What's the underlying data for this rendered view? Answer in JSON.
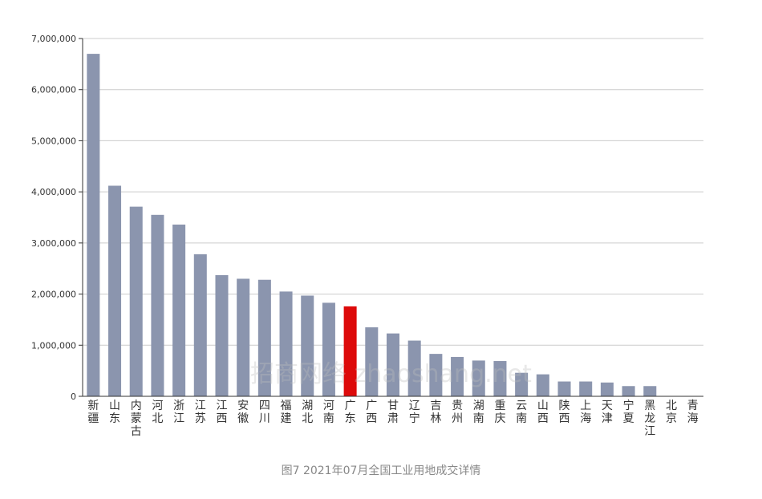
{
  "chart_data": {
    "type": "bar",
    "title": "",
    "xlabel": "",
    "ylabel": "",
    "ylim": [
      0,
      7000000
    ],
    "yticks": [
      "0",
      "1,000,000",
      "2,000,000",
      "3,000,000",
      "4,000,000",
      "5,000,000",
      "6,000,000",
      "7,000,000"
    ],
    "ytick_values": [
      0,
      1000000,
      2000000,
      3000000,
      4000000,
      5000000,
      6000000,
      7000000
    ],
    "grid": true,
    "categories": [
      "新疆",
      "山东",
      "内蒙古",
      "河北",
      "浙江",
      "江苏",
      "江西",
      "安徽",
      "四川",
      "福建",
      "湖北",
      "河南",
      "广东",
      "广西",
      "甘肃",
      "辽宁",
      "吉林",
      "贵州",
      "湖南",
      "重庆",
      "云南",
      "山西",
      "陕西",
      "上海",
      "天津",
      "宁夏",
      "黑龙江",
      "北京",
      "青海"
    ],
    "values": [
      6700000,
      4120000,
      3710000,
      3550000,
      3360000,
      2780000,
      2370000,
      2300000,
      2280000,
      2050000,
      1970000,
      1830000,
      1760000,
      1350000,
      1230000,
      1090000,
      830000,
      770000,
      700000,
      690000,
      460000,
      430000,
      290000,
      290000,
      270000,
      200000,
      200000,
      5000,
      3000
    ],
    "highlight_index": 12,
    "colors": {
      "bar": "#8b95ae",
      "highlight": "#dd0a0a",
      "grid": "#cccccc",
      "axis": "#333333"
    }
  },
  "watermark": "招商网络 zhaoshang.net",
  "caption": "图7 2021年07月全国工业用地成交详情"
}
